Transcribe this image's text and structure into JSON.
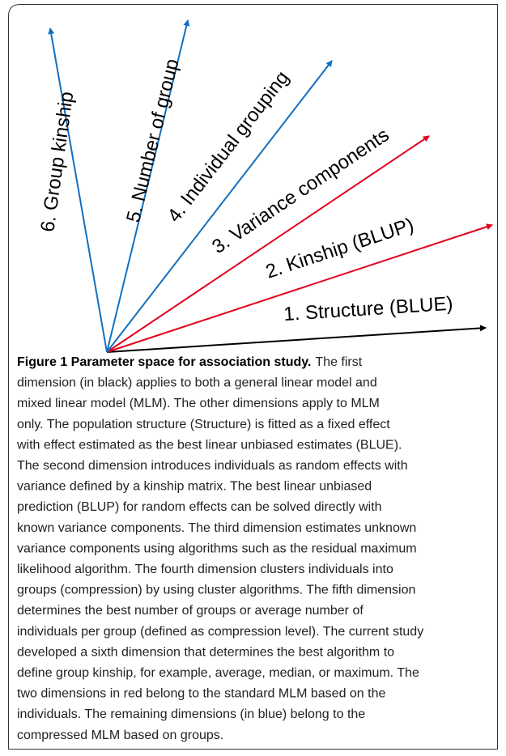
{
  "diagram": {
    "arrows": [
      {
        "label": "1. Structure (BLUE)"
      },
      {
        "label": "2. Kinship (BLUP)"
      },
      {
        "label": "3. Variance components"
      },
      {
        "label": "4. Individual grouping"
      },
      {
        "label": "5. Number of group"
      },
      {
        "label": "6. Group kinship"
      }
    ]
  },
  "caption": {
    "title": "Figure 1 Parameter space for association study.",
    "lines": [
      "The first",
      "dimension (in black) applies to both a general linear model and",
      "mixed linear model (MLM). The other dimensions apply to MLM",
      "only. The population structure (Structure) is fitted as a fixed effect",
      "with effect estimated as the best linear unbiased estimates (BLUE).",
      "The second dimension introduces individuals as random effects with",
      "variance defined by a kinship matrix. The best linear unbiased",
      "prediction (BLUP) for random effects can be solved directly with",
      "known variance components. The third dimension estimates unknown",
      "variance components using algorithms such as the residual maximum",
      "likelihood algorithm. The fourth dimension clusters individuals into",
      "groups (compression) by using cluster algorithms. The fifth dimension",
      "determines the best number of groups or average number of",
      "individuals per group (defined as compression level). The current study",
      "developed a sixth dimension that determines the best algorithm to",
      "define group kinship, for example, average, median, or maximum. The",
      "two dimensions in red belong to the standard MLM based on the",
      "individuals. The remaining dimensions (in blue) belong to the",
      "compressed MLM based on groups."
    ]
  }
}
